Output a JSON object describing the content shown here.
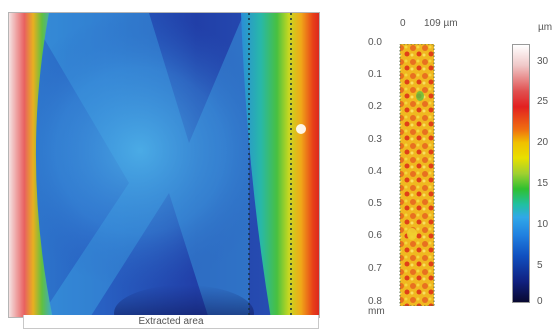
{
  "main_map": {
    "caption": "Extracted area"
  },
  "strip": {
    "x_ticks": [
      "0",
      "109 µm"
    ],
    "depth_ticks": [
      "0.0",
      "0.1",
      "0.2",
      "0.3",
      "0.4",
      "0.5",
      "0.6",
      "0.7",
      "0.8"
    ],
    "depth_unit": "mm"
  },
  "color_scale": {
    "unit": "µm",
    "ticks": [
      "30",
      "25",
      "20",
      "15",
      "10",
      "5",
      "0"
    ]
  }
}
